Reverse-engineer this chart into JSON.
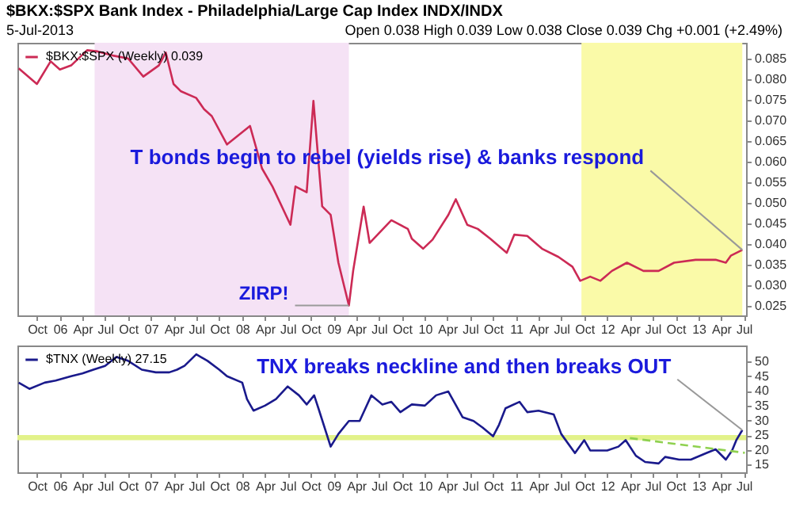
{
  "chart_data": [
    {
      "type": "line",
      "title": "$BKX:$SPX Bank Index - Philadelphia/Large Cap Index INDX/INDX",
      "subtitle": "5-Jul-2013",
      "annotations": [
        "Open 0.038 High 0.039 Low 0.038 Close 0.039 Chg +0.001 (+2.49%)",
        {
          "text": "T bonds begin to rebel (yields rise) & banks respond",
          "x": "2013-06-25",
          "y": 0.0385
        },
        {
          "text": "ZIRP!",
          "x": "2009-03-03",
          "y": 0.025
        }
      ],
      "legend": "top left",
      "xlim": [
        "2005-07-15",
        "2013-07-10"
      ],
      "ylim": [
        0.0226,
        0.0888
      ],
      "yticks": [
        0.085,
        {
          "value": 0.08,
          "label": "0.080"
        },
        0.075,
        {
          "value": 0.07,
          "label": "0.070"
        },
        0.065,
        {
          "value": 0.06,
          "label": "0.060"
        },
        0.055,
        {
          "value": 0.05,
          "label": "0.050"
        },
        0.045,
        {
          "value": 0.04,
          "label": "0.040"
        },
        0.035,
        {
          "value": 0.03,
          "label": "0.030"
        },
        0.025
      ],
      "xticks": [
        {
          "value": "2005-10-01",
          "label": "Oct"
        },
        {
          "value": "2006-01-01",
          "label": "06"
        },
        {
          "value": "2006-04-01",
          "label": "Apr"
        },
        {
          "value": "2006-07-01",
          "label": "Jul"
        },
        {
          "value": "2006-10-01",
          "label": "Oct"
        },
        {
          "value": "2007-01-01",
          "label": "07"
        },
        {
          "value": "2007-04-01",
          "label": "Apr"
        },
        {
          "value": "2007-07-01",
          "label": "Jul"
        },
        {
          "value": "2007-10-01",
          "label": "Oct"
        },
        {
          "value": "2008-01-01",
          "label": "08"
        },
        {
          "value": "2008-04-01",
          "label": "Apr"
        },
        {
          "value": "2008-07-01",
          "label": "Jul"
        },
        {
          "value": "2008-10-01",
          "label": "Oct"
        },
        {
          "value": "2009-01-01",
          "label": "09"
        },
        {
          "value": "2009-04-01",
          "label": "Apr"
        },
        {
          "value": "2009-07-01",
          "label": "Jul"
        },
        {
          "value": "2009-10-01",
          "label": "Oct"
        },
        {
          "value": "2010-01-01",
          "label": "10"
        },
        {
          "value": "2010-04-01",
          "label": "Apr"
        },
        {
          "value": "2010-07-01",
          "label": "Jul"
        },
        {
          "value": "2010-10-01",
          "label": "Oct"
        },
        {
          "value": "2011-01-01",
          "label": "11"
        },
        {
          "value": "2011-04-01",
          "label": "Apr"
        },
        {
          "value": "2011-07-01",
          "label": "Jul"
        },
        {
          "value": "2011-10-01",
          "label": "Oct"
        },
        {
          "value": "2012-01-01",
          "label": "12"
        },
        {
          "value": "2012-04-01",
          "label": "Apr"
        },
        {
          "value": "2012-07-01",
          "label": "Jul"
        },
        {
          "value": "2012-10-01",
          "label": "Oct"
        },
        {
          "value": "2013-01-01",
          "label": "13"
        },
        {
          "value": "2013-04-01",
          "label": "Apr"
        },
        {
          "value": "2013-07-01",
          "label": "Jul"
        }
      ],
      "bands": [
        {
          "axis": "x",
          "from": "2006-05-20",
          "to": "2009-03-03",
          "color": "#f5e2f5"
        },
        {
          "axis": "x",
          "from": "2011-09-20",
          "to": "2013-06-25",
          "color": "#fafaa8"
        }
      ],
      "x": [
        "2005-07-20",
        "2005-10-01",
        "2005-11-25",
        "2006-01-01",
        "2006-02-15",
        "2006-04-20",
        "2006-06-01",
        "2006-08-01",
        "2006-10-01",
        "2006-12-01",
        "2007-02-01",
        "2007-03-01",
        "2007-04-01",
        "2007-05-01",
        "2007-07-01",
        "2007-08-01",
        "2007-09-01",
        "2007-11-01",
        "2008-02-01",
        "2008-03-20",
        "2008-05-01",
        "2008-07-12",
        "2008-08-01",
        "2008-09-15",
        "2008-10-12",
        "2008-11-16",
        "2008-12-20",
        "2009-01-20",
        "2009-03-03",
        "2009-03-20",
        "2009-05-01",
        "2009-05-25",
        "2009-08-20",
        "2009-10-25",
        "2009-11-10",
        "2009-12-25",
        "2010-02-01",
        "2010-04-05",
        "2010-05-05",
        "2010-06-20",
        "2010-08-01",
        "2010-09-20",
        "2010-11-25",
        "2010-12-25",
        "2011-02-15",
        "2011-04-15",
        "2011-06-20",
        "2011-08-15",
        "2011-09-15",
        "2011-10-25",
        "2011-12-05",
        "2012-01-20",
        "2012-03-20",
        "2012-05-25",
        "2012-07-25",
        "2012-09-25",
        "2012-12-20",
        "2013-03-10",
        "2013-04-20",
        "2013-05-10",
        "2013-06-25"
      ],
      "series": [
        {
          "name": "$BKX:$SPX (Weekly) 0.039",
          "color": "#cc2a55",
          "values": [
            0.0826,
            0.0788,
            0.0843,
            0.0823,
            0.0833,
            0.087,
            0.0867,
            0.0857,
            0.085,
            0.0806,
            0.0833,
            0.0864,
            0.0788,
            0.077,
            0.0754,
            0.0727,
            0.071,
            0.0641,
            0.0686,
            0.0583,
            0.0539,
            0.0446,
            0.0539,
            0.0525,
            0.0747,
            0.0491,
            0.047,
            0.0354,
            0.025,
            0.0334,
            0.049,
            0.0402,
            0.0457,
            0.0436,
            0.0412,
            0.0388,
            0.041,
            0.047,
            0.0508,
            0.0446,
            0.0436,
            0.0412,
            0.0378,
            0.0422,
            0.0419,
            0.0388,
            0.0368,
            0.0344,
            0.031,
            0.032,
            0.031,
            0.0334,
            0.0354,
            0.0334,
            0.0334,
            0.0354,
            0.0361,
            0.0361,
            0.0354,
            0.0371,
            0.0385
          ]
        }
      ]
    },
    {
      "type": "line",
      "annotations": [
        {
          "text": "TNX breaks neckline and then breaks OUT",
          "x": "2013-06-25",
          "y": 26.7
        }
      ],
      "legend": "top left",
      "xlim": [
        "2005-07-15",
        "2013-07-10"
      ],
      "ylim": [
        12.4,
        55.4
      ],
      "yticks": [
        50,
        45,
        40,
        35,
        30,
        25,
        20,
        15
      ],
      "xticks": [
        {
          "value": "2005-10-01",
          "label": "Oct"
        },
        {
          "value": "2006-01-01",
          "label": "06"
        },
        {
          "value": "2006-04-01",
          "label": "Apr"
        },
        {
          "value": "2006-07-01",
          "label": "Jul"
        },
        {
          "value": "2006-10-01",
          "label": "Oct"
        },
        {
          "value": "2007-01-01",
          "label": "07"
        },
        {
          "value": "2007-04-01",
          "label": "Apr"
        },
        {
          "value": "2007-07-01",
          "label": "Jul"
        },
        {
          "value": "2007-10-01",
          "label": "Oct"
        },
        {
          "value": "2008-01-01",
          "label": "08"
        },
        {
          "value": "2008-04-01",
          "label": "Apr"
        },
        {
          "value": "2008-07-01",
          "label": "Jul"
        },
        {
          "value": "2008-10-01",
          "label": "Oct"
        },
        {
          "value": "2009-01-01",
          "label": "09"
        },
        {
          "value": "2009-04-01",
          "label": "Apr"
        },
        {
          "value": "2009-07-01",
          "label": "Jul"
        },
        {
          "value": "2009-10-01",
          "label": "Oct"
        },
        {
          "value": "2010-01-01",
          "label": "10"
        },
        {
          "value": "2010-04-01",
          "label": "Apr"
        },
        {
          "value": "2010-07-01",
          "label": "Jul"
        },
        {
          "value": "2010-10-01",
          "label": "Oct"
        },
        {
          "value": "2011-01-01",
          "label": "11"
        },
        {
          "value": "2011-04-01",
          "label": "Apr"
        },
        {
          "value": "2011-07-01",
          "label": "Jul"
        },
        {
          "value": "2011-10-01",
          "label": "Oct"
        },
        {
          "value": "2012-01-01",
          "label": "12"
        },
        {
          "value": "2012-04-01",
          "label": "Apr"
        },
        {
          "value": "2012-07-01",
          "label": "Jul"
        },
        {
          "value": "2012-10-01",
          "label": "Oct"
        },
        {
          "value": "2013-01-01",
          "label": "13"
        },
        {
          "value": "2013-04-01",
          "label": "Apr"
        },
        {
          "value": "2013-07-01",
          "label": "Jul"
        }
      ],
      "bands": [
        {
          "axis": "y",
          "from": 23.3,
          "to": 25,
          "color": "#e2f28a"
        }
      ],
      "x": [
        "2005-07-20",
        "2005-09-01",
        "2005-11-01",
        "2005-12-15",
        "2006-02-15",
        "2006-04-01",
        "2006-05-15",
        "2006-07-01",
        "2006-08-15",
        "2006-10-01",
        "2006-11-25",
        "2007-01-20",
        "2007-03-15",
        "2007-04-15",
        "2007-05-15",
        "2007-07-01",
        "2007-08-15",
        "2007-10-01",
        "2007-11-01",
        "2008-01-01",
        "2008-01-20",
        "2008-02-15",
        "2008-04-01",
        "2008-05-15",
        "2008-07-01",
        "2008-08-15",
        "2008-09-15",
        "2008-10-15",
        "2008-11-01",
        "2008-12-20",
        "2009-01-20",
        "2009-03-03",
        "2009-04-15",
        "2009-06-01",
        "2009-07-15",
        "2009-08-20",
        "2009-09-25",
        "2009-11-10",
        "2010-01-01",
        "2010-02-15",
        "2010-04-05",
        "2010-06-01",
        "2010-07-15",
        "2010-08-20",
        "2010-10-01",
        "2010-10-25",
        "2010-11-20",
        "2011-01-15",
        "2011-02-15",
        "2011-04-01",
        "2011-06-01",
        "2011-07-01",
        "2011-08-25",
        "2011-10-01",
        "2011-10-25",
        "2012-01-01",
        "2012-02-15",
        "2012-03-15",
        "2012-04-25",
        "2012-06-01",
        "2012-07-25",
        "2012-08-20",
        "2012-10-15",
        "2012-12-01",
        "2013-02-01",
        "2013-03-10",
        "2013-04-20",
        "2013-05-15",
        "2013-06-01",
        "2013-06-25"
      ],
      "series": [
        {
          "name": "$TNX (Weekly) 27.15",
          "color": "#1a1a8c",
          "values": [
            42.8,
            40.7,
            42.8,
            43.5,
            45,
            45.9,
            47.2,
            48.5,
            51.5,
            50.2,
            47.2,
            46.3,
            46.3,
            47.2,
            48.5,
            52.4,
            50.2,
            47.2,
            45,
            42.8,
            37.2,
            33.3,
            35,
            37.2,
            41.5,
            38.5,
            35.4,
            38.5,
            34.1,
            21.1,
            25.4,
            29.8,
            29.8,
            38.5,
            35.4,
            36.3,
            32.8,
            35.4,
            35,
            38.5,
            39.8,
            31.1,
            29.8,
            27.6,
            24.6,
            28.5,
            34.1,
            36.3,
            32.8,
            33.3,
            32,
            25.4,
            18.9,
            23.3,
            19.8,
            19.8,
            21.1,
            23.3,
            18,
            15.9,
            15.4,
            17.6,
            16.7,
            16.7,
            18.9,
            20.2,
            16.7,
            19.8,
            23.3,
            26.7
          ]
        },
        {
          "type": "line",
          "color": "#8fd14f",
          "line_style": "dashed",
          "x": [
            "2012-04-01",
            "2013-07-05"
          ],
          "values": [
            24,
            19
          ]
        }
      ]
    }
  ]
}
